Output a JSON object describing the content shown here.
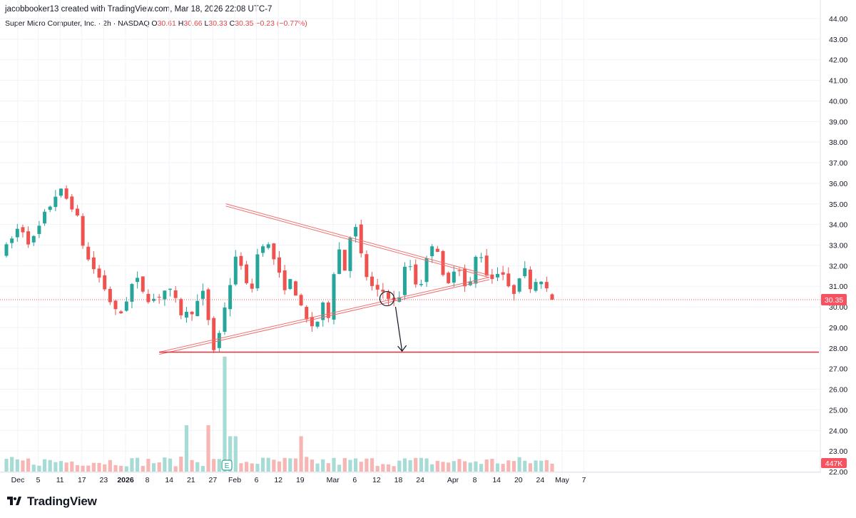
{
  "header": {
    "byline": "jacobbooker13 created with TradingView.com, Mar 18, 2026 22:08 UTC-7",
    "symbol": "Super Micro Computer, Inc. · 2h · NASDAQ",
    "ohlc": [
      {
        "k": "O",
        "v": "30.61"
      },
      {
        "k": "H",
        "v": "30.66"
      },
      {
        "k": "L",
        "v": "30.33"
      },
      {
        "k": "C",
        "v": "30.35"
      }
    ],
    "change": "−0.23 (−0.77%)"
  },
  "price_tag": "30.35",
  "volume_tag": "447K",
  "earnings_marker": "E",
  "brand": "TradingView",
  "colors": {
    "up": "#26a69a",
    "down": "#ef5350",
    "pattern": "#f06f6f",
    "support": "#e03b40",
    "grid": "#f0f3fa",
    "price_line": "#f7525f"
  },
  "chart_data": {
    "type": "candlestick",
    "y_ticks": [
      "44.00",
      "43.00",
      "42.00",
      "41.00",
      "40.00",
      "39.00",
      "38.00",
      "37.00",
      "36.00",
      "35.00",
      "34.00",
      "33.00",
      "32.00",
      "31.00",
      "30.00",
      "29.00",
      "28.00",
      "27.00",
      "26.00",
      "25.00",
      "24.00",
      "23.00",
      "22.00"
    ],
    "x_ticks": [
      {
        "label": "Dec",
        "bold": false,
        "i": 0
      },
      {
        "label": "5",
        "bold": false,
        "i": 4
      },
      {
        "label": "11",
        "bold": false,
        "i": 8
      },
      {
        "label": "17",
        "bold": false,
        "i": 12
      },
      {
        "label": "23",
        "bold": false,
        "i": 16
      },
      {
        "label": "2026",
        "bold": true,
        "i": 20
      },
      {
        "label": "8",
        "bold": false,
        "i": 24
      },
      {
        "label": "14",
        "bold": false,
        "i": 28
      },
      {
        "label": "21",
        "bold": false,
        "i": 32
      },
      {
        "label": "27",
        "bold": false,
        "i": 36
      },
      {
        "label": "Feb",
        "bold": false,
        "i": 40
      },
      {
        "label": "6",
        "bold": false,
        "i": 44
      },
      {
        "label": "12",
        "bold": false,
        "i": 48
      },
      {
        "label": "19",
        "bold": false,
        "i": 52
      },
      {
        "label": "Mar",
        "bold": false,
        "i": 58
      },
      {
        "label": "6",
        "bold": false,
        "i": 62
      },
      {
        "label": "12",
        "bold": false,
        "i": 66
      },
      {
        "label": "18",
        "bold": false,
        "i": 70
      },
      {
        "label": "24",
        "bold": false,
        "i": 74
      },
      {
        "label": "Apr",
        "bold": false,
        "i": 80
      },
      {
        "label": "8",
        "bold": false,
        "i": 84
      },
      {
        "label": "14",
        "bold": false,
        "i": 88
      },
      {
        "label": "20",
        "bold": false,
        "i": 92
      },
      {
        "label": "24",
        "bold": false,
        "i": 96
      },
      {
        "label": "May",
        "bold": false,
        "i": 100
      },
      {
        "label": "7",
        "bold": false,
        "i": 104
      }
    ],
    "anchors": [
      [
        0,
        32.6
      ],
      [
        3,
        34.0
      ],
      [
        5,
        33.0
      ],
      [
        8,
        34.7
      ],
      [
        10,
        35.7
      ],
      [
        13,
        34.8
      ],
      [
        15,
        32.5
      ],
      [
        18,
        31.2
      ],
      [
        21,
        29.4
      ],
      [
        24,
        31.4
      ],
      [
        27,
        30.3
      ],
      [
        30,
        30.9
      ],
      [
        33,
        29.5
      ],
      [
        35,
        30.0
      ],
      [
        37,
        30.8
      ],
      [
        38,
        28.0
      ],
      [
        39,
        27.9
      ],
      [
        40,
        29.5
      ],
      [
        43,
        32.8
      ],
      [
        45,
        30.3
      ],
      [
        47,
        33.3
      ],
      [
        49,
        32.8
      ],
      [
        51,
        31.0
      ],
      [
        53,
        31.2
      ],
      [
        55,
        29.4
      ],
      [
        57,
        29.0
      ],
      [
        59,
        30.3
      ],
      [
        60,
        29.0
      ],
      [
        61,
        34.6
      ],
      [
        62,
        31.0
      ],
      [
        64,
        34.4
      ],
      [
        66,
        31.8
      ],
      [
        68,
        30.6
      ],
      [
        70,
        30.8
      ],
      [
        72,
        30.0
      ],
      [
        74,
        32.4
      ],
      [
        76,
        30.8
      ],
      [
        79,
        33.6
      ],
      [
        81,
        30.6
      ],
      [
        83,
        32.4
      ],
      [
        85,
        30.5
      ],
      [
        87,
        33.0
      ],
      [
        89,
        31.2
      ],
      [
        91,
        32.0
      ],
      [
        93,
        30.4
      ],
      [
        95,
        32.0
      ],
      [
        97,
        30.8
      ],
      [
        98,
        31.8
      ],
      [
        100,
        30.4
      ]
    ],
    "candles": [],
    "volumes": [],
    "lines": [
      {
        "name": "triangle-upper",
        "from": [
          "2026-02-03",
          34.95
        ],
        "to": [
          "2026-04-13",
          31.48
        ]
      },
      {
        "name": "triangle-lower",
        "from": [
          "2026-01-14",
          27.75
        ],
        "to": [
          "2026-04-13",
          31.38
        ]
      },
      {
        "name": "support",
        "from": [
          "2026-01-14",
          27.8
        ],
        "to": [
          "2026-05-18",
          27.8
        ]
      },
      {
        "name": "breakdown-arrow",
        "from": [
          "2026-03-18",
          30.35
        ],
        "to": [
          "2026-03-22",
          27.85
        ]
      }
    ],
    "last_price": 30.35,
    "last_volume": "447K"
  }
}
